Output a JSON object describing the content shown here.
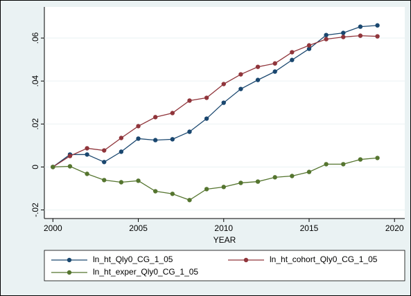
{
  "chart_data": {
    "type": "line",
    "x_label": "YEAR",
    "x": [
      2000,
      2001,
      2002,
      2003,
      2004,
      2005,
      2006,
      2007,
      2008,
      2009,
      2010,
      2011,
      2012,
      2013,
      2014,
      2015,
      2016,
      2017,
      2018,
      2019
    ],
    "series": [
      {
        "name": "ln_ht_Qly0_CG_1_05",
        "color": "#1a476f",
        "values": [
          0,
          0.0058,
          0.0058,
          0.0023,
          0.0071,
          0.0132,
          0.0125,
          0.0129,
          0.0164,
          0.0225,
          0.0299,
          0.0363,
          0.0405,
          0.0444,
          0.0498,
          0.055,
          0.0614,
          0.0624,
          0.0653,
          0.0659
        ]
      },
      {
        "name": "ln_ht_cohort_Qly0_CG_1_05",
        "color": "#90353b",
        "values": [
          0,
          0.0051,
          0.0087,
          0.0077,
          0.0135,
          0.019,
          0.0232,
          0.0251,
          0.0309,
          0.0322,
          0.0386,
          0.0431,
          0.0466,
          0.0482,
          0.0534,
          0.0566,
          0.0595,
          0.0605,
          0.0611,
          0.0608
        ]
      },
      {
        "name": "ln_ht_exper_Qly0_CG_1_05",
        "color": "#55752f",
        "values": [
          0,
          0.0003,
          -0.0032,
          -0.0061,
          -0.0071,
          -0.0064,
          -0.0113,
          -0.0125,
          -0.0154,
          -0.0103,
          -0.0093,
          -0.0074,
          -0.0068,
          -0.0048,
          -0.0042,
          -0.0023,
          0.0013,
          0.0013,
          0.0035,
          0.0042
        ]
      }
    ],
    "xlim": [
      1999.5,
      2020.6
    ],
    "xticks": [
      2000,
      2005,
      2010,
      2015,
      2020
    ],
    "ylim": [
      -0.024,
      0.0745
    ],
    "yticks": [
      {
        "value": -0.02,
        "label": "-.02"
      },
      {
        "value": 0,
        "label": "0"
      },
      {
        "value": 0.02,
        "label": ".02"
      },
      {
        "value": 0.04,
        "label": ".04"
      },
      {
        "value": 0.06,
        "label": ".06"
      }
    ],
    "grid": true
  }
}
